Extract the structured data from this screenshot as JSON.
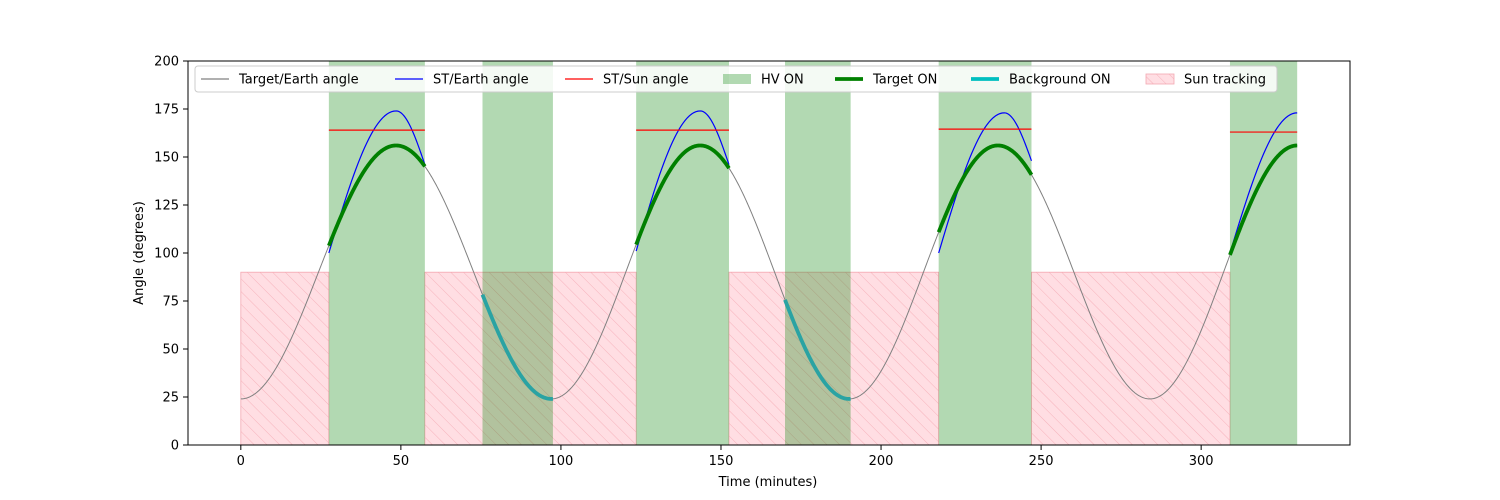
{
  "chart_data": {
    "type": "line",
    "title": "",
    "xlabel": "Time (minutes)",
    "ylabel": "Angle (degrees)",
    "xlim": [
      -16.5,
      346.5
    ],
    "ylim": [
      0,
      200
    ],
    "xticks": [
      0,
      50,
      100,
      150,
      200,
      250,
      300
    ],
    "yticks": [
      0,
      25,
      50,
      75,
      100,
      125,
      150,
      175,
      200
    ],
    "grid": false,
    "legend_position": "top",
    "orbit": {
      "min_angle": 24,
      "max_angle": 156,
      "min_times": [
        0,
        97,
        190,
        284
      ],
      "max_times": [
        48.5,
        143.5,
        236.5,
        330
      ]
    },
    "series": [
      {
        "name": "Target/Earth angle",
        "color": "#808080",
        "style": "line",
        "x_range": [
          0,
          330
        ]
      },
      {
        "name": "ST/Earth angle",
        "color": "#0000ff",
        "style": "line",
        "segments": [
          {
            "x": [
              27.5,
              48.5,
              57.5
            ],
            "y": [
              100,
              174,
              146
            ]
          },
          {
            "x": [
              123.5,
              143.5,
              152.5
            ],
            "y": [
              101,
              174,
              146
            ]
          },
          {
            "x": [
              218,
              238.5,
              247
            ],
            "y": [
              100,
              173,
              148
            ]
          },
          {
            "x": [
              309,
              330
            ],
            "y": [
              100,
              173
            ]
          }
        ]
      },
      {
        "name": "ST/Sun angle",
        "color": "#ff0000",
        "style": "line",
        "segments": [
          {
            "x": [
              27.5,
              57.5
            ],
            "y": [
              164,
              164
            ]
          },
          {
            "x": [
              123.5,
              152.5
            ],
            "y": [
              164,
              164
            ]
          },
          {
            "x": [
              218,
              247
            ],
            "y": [
              164.5,
              164.5
            ]
          },
          {
            "x": [
              309,
              330
            ],
            "y": [
              163,
              163
            ]
          }
        ]
      },
      {
        "name": "HV ON",
        "color": "#008000",
        "style": "band",
        "intervals": [
          [
            27.5,
            57.5
          ],
          [
            75.5,
            97.5
          ],
          [
            123.5,
            152.5
          ],
          [
            170,
            190.5
          ],
          [
            218,
            247
          ],
          [
            309,
            330
          ]
        ]
      },
      {
        "name": "Target ON",
        "color": "#008000",
        "style": "thick-line",
        "intervals": [
          [
            27.5,
            57.5
          ],
          [
            123.5,
            152.5
          ],
          [
            218,
            247
          ],
          [
            309,
            330
          ]
        ]
      },
      {
        "name": "Background ON",
        "color": "#00bfbf",
        "style": "thick-line",
        "intervals": [
          [
            75.5,
            97.5
          ],
          [
            170,
            190.5
          ]
        ]
      },
      {
        "name": "Sun tracking",
        "color": "#ffb6c1",
        "style": "hatched-band",
        "y_range": [
          0,
          90
        ],
        "intervals": [
          [
            0,
            27.5
          ],
          [
            57.5,
            123.5
          ],
          [
            152.5,
            218
          ],
          [
            247,
            309
          ]
        ]
      }
    ]
  }
}
